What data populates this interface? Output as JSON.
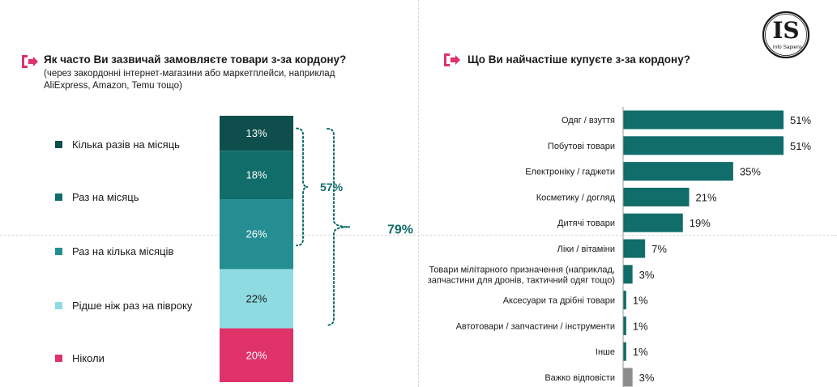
{
  "left": {
    "title": "Як часто Ви зазвичай замовляєте товари з-за кордону?",
    "subtitle_line1": "(через закордонні інтернет-магазини або маркетплейси, наприклад",
    "subtitle_line2": "AliExpress, Amazon, Temu тощо)",
    "legend": [
      {
        "label": "Кілька разів на місяць",
        "color": "#0e4f4d"
      },
      {
        "label": "Раз на місяць",
        "color": "#106d6a"
      },
      {
        "label": "Раз на кілька місяців",
        "color": "#258e93"
      },
      {
        "label": "Рідше ніж раз на півроку",
        "color": "#8fdbe2"
      },
      {
        "label": "Ніколи",
        "color": "#df3269"
      }
    ],
    "bracket_inner_label": "57%",
    "bracket_outer_label": "79%"
  },
  "right": {
    "title": "Що Ви найчастіше купуєте з-за кордону?"
  },
  "logo": {
    "text": "IS",
    "caption": "Info Sapiens"
  },
  "chart_data": [
    {
      "type": "bar",
      "orientation": "vertical-stacked",
      "categories": [
        "Кілька разів на місяць",
        "Раз на місяць",
        "Раз на кілька місяців",
        "Рідше ніж раз на півроку",
        "Ніколи"
      ],
      "values": [
        13,
        18,
        26,
        22,
        20
      ],
      "data_labels": [
        "13%",
        "18%",
        "26%",
        "22%",
        "20%"
      ],
      "colors": [
        "#0e4f4d",
        "#106d6a",
        "#258e93",
        "#8fdbe2",
        "#df3269"
      ],
      "label_colors": [
        "#ffffff",
        "#ffffff",
        "#ffffff",
        "#1a1a1a",
        "#ffffff"
      ],
      "brackets": [
        {
          "label": "57%",
          "from": 0,
          "to": 2
        },
        {
          "label": "79%",
          "from": 0,
          "to": 3
        }
      ],
      "legend": "left"
    },
    {
      "type": "bar",
      "orientation": "horizontal",
      "categories": [
        [
          "Одяг / взуття"
        ],
        [
          "Побутові товари"
        ],
        [
          "Електроніку / гаджети"
        ],
        [
          "Косметику / догляд"
        ],
        [
          "Дитячі товари"
        ],
        [
          "Ліки / вітаміни"
        ],
        [
          "Товари мілітарного призначення (наприклад,",
          "запчастини для дронів, тактичний одяг тощо)"
        ],
        [
          "Аксесуари та дрібні товари"
        ],
        [
          "Автотовари / запчастини / інструменти"
        ],
        [
          "Інше"
        ],
        [
          "Важко відповісти"
        ]
      ],
      "values": [
        51,
        51,
        35,
        21,
        19,
        7,
        3,
        1,
        1,
        1,
        3
      ],
      "data_labels": [
        "51%",
        "51%",
        "35%",
        "21%",
        "19%",
        "7%",
        "3%",
        "1%",
        "1%",
        "1%",
        "3%"
      ],
      "colors": [
        "#106d6a",
        "#106d6a",
        "#106d6a",
        "#106d6a",
        "#106d6a",
        "#106d6a",
        "#106d6a",
        "#106d6a",
        "#106d6a",
        "#106d6a",
        "#8c8c8c"
      ]
    }
  ]
}
